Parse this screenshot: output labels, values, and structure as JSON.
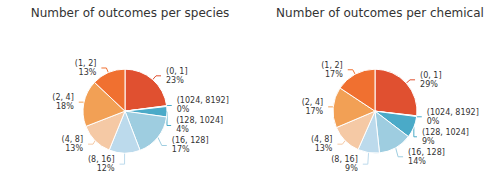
{
  "chart_data": [
    {
      "type": "pie",
      "title": "Number of outcomes per species",
      "categories": [
        "(0, 1]",
        "(1024, 8192]",
        "(128, 1024]",
        "(16, 128]",
        "(8, 16]",
        "(4, 8]",
        "(2, 4]",
        "(1, 2]"
      ],
      "values": [
        23,
        0.3,
        4,
        17,
        12,
        13,
        18,
        13
      ],
      "value_labels": [
        "23%",
        "0%",
        "4%",
        "17%",
        "12%",
        "13%",
        "18%",
        "13%"
      ],
      "colors": [
        "#e05030",
        "#4aaac8",
        "#4aaac8",
        "#9ecde0",
        "#bcdaec",
        "#f5c9a5",
        "#f2a055",
        "#f07030"
      ],
      "data_labels": true
    },
    {
      "type": "pie",
      "title": "Number of outcomes per chemical",
      "categories": [
        "(0, 1]",
        "(1024, 8192]",
        "(128, 1024]",
        "(16, 128]",
        "(8, 16]",
        "(4, 8]",
        "(2, 4]",
        "(1, 2]"
      ],
      "values": [
        29,
        0.3,
        9,
        14,
        9,
        13,
        17,
        17
      ],
      "value_labels": [
        "29%",
        "0%",
        "9%",
        "14%",
        "9%",
        "13%",
        "17%",
        "17%"
      ],
      "colors": [
        "#e05030",
        "#4aaac8",
        "#4aaac8",
        "#9ecde0",
        "#bcdaec",
        "#f5c9a5",
        "#f2a055",
        "#f07030"
      ],
      "data_labels": true
    }
  ]
}
